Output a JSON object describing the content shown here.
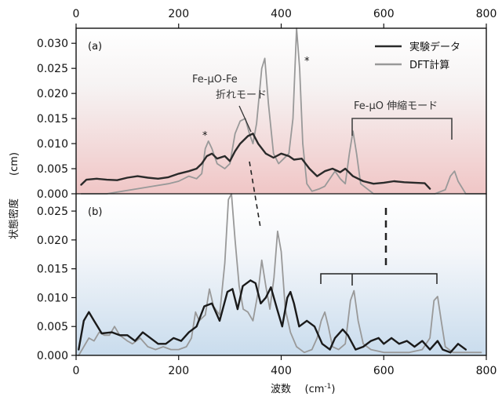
{
  "chart_data": [
    {
      "panel_label": "(a)",
      "type": "line",
      "xlim": [
        0,
        800
      ],
      "ylim": [
        0,
        0.033
      ],
      "yticks": [
        "0.000",
        "0.005",
        "0.010",
        "0.015",
        "0.020",
        "0.025",
        "0.030"
      ],
      "ytick_values": [
        0,
        0.005,
        0.01,
        0.015,
        0.02,
        0.025,
        0.03
      ],
      "background": "pink gradient",
      "legend": {
        "placement": "top-right",
        "entries": [
          "実験データ",
          "DFT計算"
        ]
      },
      "series": [
        {
          "name": "実験データ",
          "color": "#2a2a2a",
          "points": [
            [
              10,
              0.0018
            ],
            [
              20,
              0.0028
            ],
            [
              40,
              0.003
            ],
            [
              60,
              0.0028
            ],
            [
              80,
              0.0027
            ],
            [
              100,
              0.0032
            ],
            [
              120,
              0.0035
            ],
            [
              140,
              0.0032
            ],
            [
              160,
              0.003
            ],
            [
              180,
              0.0033
            ],
            [
              200,
              0.004
            ],
            [
              220,
              0.0045
            ],
            [
              235,
              0.005
            ],
            [
              245,
              0.006
            ],
            [
              255,
              0.0075
            ],
            [
              265,
              0.008
            ],
            [
              275,
              0.007
            ],
            [
              290,
              0.0075
            ],
            [
              300,
              0.0065
            ],
            [
              310,
              0.0085
            ],
            [
              320,
              0.01
            ],
            [
              335,
              0.0115
            ],
            [
              345,
              0.012
            ],
            [
              355,
              0.01
            ],
            [
              370,
              0.008
            ],
            [
              385,
              0.0072
            ],
            [
              400,
              0.008
            ],
            [
              415,
              0.0075
            ],
            [
              425,
              0.0068
            ],
            [
              440,
              0.007
            ],
            [
              455,
              0.005
            ],
            [
              470,
              0.0035
            ],
            [
              485,
              0.0045
            ],
            [
              500,
              0.005
            ],
            [
              515,
              0.0043
            ],
            [
              525,
              0.005
            ],
            [
              540,
              0.0035
            ],
            [
              560,
              0.0025
            ],
            [
              580,
              0.002
            ],
            [
              600,
              0.0022
            ],
            [
              620,
              0.0025
            ],
            [
              640,
              0.0023
            ],
            [
              660,
              0.0022
            ],
            [
              680,
              0.0021
            ],
            [
              690,
              0.001
            ]
          ]
        },
        {
          "name": "DFT計算",
          "color": "#999999",
          "points": [
            [
              10,
              0
            ],
            [
              30,
              0
            ],
            [
              60,
              0
            ],
            [
              90,
              0.0005
            ],
            [
              120,
              0.001
            ],
            [
              150,
              0.0015
            ],
            [
              180,
              0.002
            ],
            [
              200,
              0.0025
            ],
            [
              220,
              0.0035
            ],
            [
              235,
              0.003
            ],
            [
              245,
              0.004
            ],
            [
              252,
              0.009
            ],
            [
              258,
              0.0105
            ],
            [
              265,
              0.009
            ],
            [
              275,
              0.006
            ],
            [
              290,
              0.005
            ],
            [
              300,
              0.006
            ],
            [
              310,
              0.012
            ],
            [
              320,
              0.0145
            ],
            [
              330,
              0.015
            ],
            [
              338,
              0.012
            ],
            [
              345,
              0.01
            ],
            [
              352,
              0.014
            ],
            [
              362,
              0.025
            ],
            [
              368,
              0.027
            ],
            [
              375,
              0.018
            ],
            [
              385,
              0.008
            ],
            [
              395,
              0.006
            ],
            [
              405,
              0.007
            ],
            [
              415,
              0.008
            ],
            [
              423,
              0.015
            ],
            [
              430,
              0.033
            ],
            [
              436,
              0.025
            ],
            [
              442,
              0.01
            ],
            [
              450,
              0.002
            ],
            [
              460,
              0.0005
            ],
            [
              475,
              0.001
            ],
            [
              485,
              0.0015
            ],
            [
              495,
              0.003
            ],
            [
              505,
              0.0045
            ],
            [
              515,
              0.003
            ],
            [
              525,
              0.002
            ],
            [
              533,
              0.008
            ],
            [
              540,
              0.0125
            ],
            [
              547,
              0.008
            ],
            [
              555,
              0.002
            ],
            [
              580,
              0
            ],
            [
              600,
              0
            ],
            [
              650,
              0
            ],
            [
              700,
              0
            ],
            [
              720,
              0.0008
            ],
            [
              730,
              0.0035
            ],
            [
              738,
              0.0045
            ],
            [
              745,
              0.0025
            ],
            [
              760,
              0
            ],
            [
              800,
              0
            ]
          ]
        }
      ],
      "annotations": [
        {
          "text": "*",
          "x": 258,
          "y": 0.0115
        },
        {
          "text": "*",
          "x": 455,
          "y": 0.0305
        },
        {
          "text": "Fe-µO-Fe",
          "x": 320,
          "y": 0.0245
        },
        {
          "text": "折れモード",
          "x": 320,
          "y": 0.021
        },
        {
          "text": "Fe-µO  伸縮モード",
          "x": 600,
          "y": 0.018
        }
      ]
    },
    {
      "panel_label": "(b)",
      "type": "line",
      "xlim": [
        0,
        800
      ],
      "ylim": [
        0,
        0.028
      ],
      "yticks": [
        "0.000",
        "0.005",
        "0.010",
        "0.015",
        "0.020",
        "0.025"
      ],
      "ytick_values": [
        0,
        0.005,
        0.01,
        0.015,
        0.02,
        0.025
      ],
      "xticks": [
        "0",
        "200",
        "400",
        "600",
        "800"
      ],
      "xtick_values": [
        0,
        200,
        400,
        600,
        800
      ],
      "xlabel": "波数",
      "xlabel_unit": "(cm-1)",
      "background": "blue gradient",
      "series": [
        {
          "name": "実験データ",
          "color": "#1a1a1a",
          "points": [
            [
              5,
              0.001
            ],
            [
              15,
              0.006
            ],
            [
              25,
              0.0075
            ],
            [
              35,
              0.006
            ],
            [
              50,
              0.0038
            ],
            [
              70,
              0.004
            ],
            [
              85,
              0.0035
            ],
            [
              100,
              0.0035
            ],
            [
              115,
              0.0025
            ],
            [
              130,
              0.004
            ],
            [
              145,
              0.003
            ],
            [
              160,
              0.002
            ],
            [
              175,
              0.002
            ],
            [
              190,
              0.003
            ],
            [
              205,
              0.0025
            ],
            [
              220,
              0.004
            ],
            [
              235,
              0.005
            ],
            [
              250,
              0.0085
            ],
            [
              265,
              0.009
            ],
            [
              280,
              0.006
            ],
            [
              295,
              0.011
            ],
            [
              305,
              0.0115
            ],
            [
              315,
              0.008
            ],
            [
              325,
              0.012
            ],
            [
              340,
              0.013
            ],
            [
              350,
              0.0125
            ],
            [
              360,
              0.009
            ],
            [
              370,
              0.01
            ],
            [
              380,
              0.0118
            ],
            [
              392,
              0.008
            ],
            [
              402,
              0.005
            ],
            [
              412,
              0.01
            ],
            [
              418,
              0.011
            ],
            [
              425,
              0.009
            ],
            [
              435,
              0.005
            ],
            [
              450,
              0.006
            ],
            [
              465,
              0.005
            ],
            [
              480,
              0.002
            ],
            [
              495,
              0.001
            ],
            [
              505,
              0.003
            ],
            [
              520,
              0.0045
            ],
            [
              530,
              0.0035
            ],
            [
              545,
              0.001
            ],
            [
              560,
              0.0015
            ],
            [
              575,
              0.0025
            ],
            [
              590,
              0.003
            ],
            [
              600,
              0.002
            ],
            [
              615,
              0.003
            ],
            [
              630,
              0.002
            ],
            [
              645,
              0.0025
            ],
            [
              660,
              0.0015
            ],
            [
              675,
              0.0025
            ],
            [
              690,
              0.001
            ],
            [
              705,
              0.0025
            ],
            [
              715,
              0.001
            ],
            [
              730,
              0.0005
            ],
            [
              745,
              0.002
            ],
            [
              760,
              0.001
            ]
          ]
        },
        {
          "name": "DFT計算",
          "color": "#999999",
          "points": [
            [
              5,
              0
            ],
            [
              15,
              0.0015
            ],
            [
              25,
              0.003
            ],
            [
              35,
              0.0025
            ],
            [
              45,
              0.004
            ],
            [
              55,
              0.0035
            ],
            [
              65,
              0.0035
            ],
            [
              75,
              0.005
            ],
            [
              85,
              0.0035
            ],
            [
              100,
              0.0025
            ],
            [
              110,
              0.002
            ],
            [
              125,
              0.003
            ],
            [
              140,
              0.0015
            ],
            [
              155,
              0.001
            ],
            [
              170,
              0.0015
            ],
            [
              185,
              0.001
            ],
            [
              200,
              0.001
            ],
            [
              215,
              0.0015
            ],
            [
              225,
              0.003
            ],
            [
              233,
              0.0075
            ],
            [
              240,
              0.006
            ],
            [
              252,
              0.007
            ],
            [
              260,
              0.0115
            ],
            [
              268,
              0.0085
            ],
            [
              280,
              0.007
            ],
            [
              290,
              0.016
            ],
            [
              297,
              0.027
            ],
            [
              303,
              0.028
            ],
            [
              310,
              0.02
            ],
            [
              318,
              0.012
            ],
            [
              326,
              0.008
            ],
            [
              335,
              0.0075
            ],
            [
              345,
              0.006
            ],
            [
              355,
              0.011
            ],
            [
              362,
              0.0165
            ],
            [
              370,
              0.012
            ],
            [
              378,
              0.008
            ],
            [
              386,
              0.0135
            ],
            [
              393,
              0.0215
            ],
            [
              400,
              0.018
            ],
            [
              408,
              0.008
            ],
            [
              418,
              0.004
            ],
            [
              430,
              0.0015
            ],
            [
              445,
              0.0005
            ],
            [
              460,
              0.001
            ],
            [
              470,
              0.003
            ],
            [
              478,
              0.006
            ],
            [
              485,
              0.0075
            ],
            [
              492,
              0.005
            ],
            [
              500,
              0.0015
            ],
            [
              512,
              0.001
            ],
            [
              525,
              0.002
            ],
            [
              535,
              0.0095
            ],
            [
              542,
              0.0112
            ],
            [
              550,
              0.006
            ],
            [
              560,
              0.002
            ],
            [
              575,
              0.001
            ],
            [
              600,
              0.0005
            ],
            [
              625,
              0.0005
            ],
            [
              650,
              0.0005
            ],
            [
              675,
              0.001
            ],
            [
              690,
              0.003
            ],
            [
              698,
              0.0095
            ],
            [
              705,
              0.0102
            ],
            [
              712,
              0.006
            ],
            [
              720,
              0.0015
            ],
            [
              735,
              0.0005
            ],
            [
              760,
              0.0005
            ],
            [
              790,
              0.0005
            ]
          ]
        }
      ]
    }
  ],
  "page": {
    "ylabel": "状態密度",
    "ylabel_unit": "(cm)"
  }
}
